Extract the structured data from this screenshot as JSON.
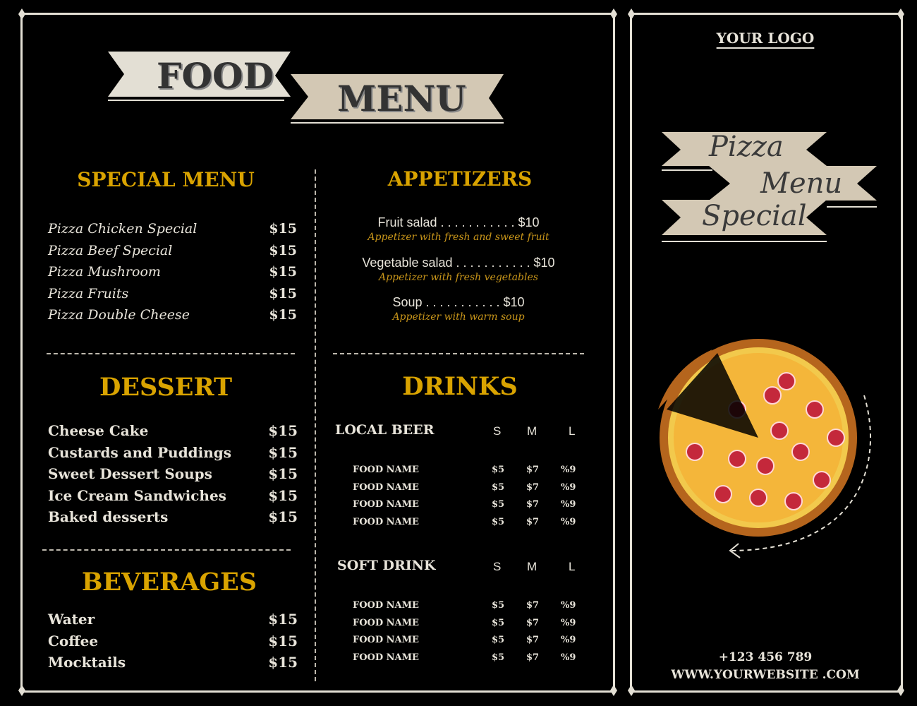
{
  "title": {
    "food": "FOOD",
    "menu": "MENU"
  },
  "special": {
    "heading": "SPECIAL MENU",
    "items": [
      {
        "name": "Pizza Chicken Special",
        "price": "$15"
      },
      {
        "name": "Pizza Beef Special",
        "price": "$15"
      },
      {
        "name": "Pizza Mushroom",
        "price": "$15"
      },
      {
        "name": "Pizza Fruits",
        "price": "$15"
      },
      {
        "name": "Pizza Double Cheese",
        "price": "$15"
      }
    ]
  },
  "dessert": {
    "heading": "DESSERT",
    "items": [
      {
        "name": "Cheese Cake",
        "price": "$15"
      },
      {
        "name": "Custards and Puddings",
        "price": "$15"
      },
      {
        "name": "Sweet Dessert Soups",
        "price": "$15"
      },
      {
        "name": "Ice Cream Sandwiches",
        "price": "$15"
      },
      {
        "name": "Baked desserts",
        "price": "$15"
      }
    ]
  },
  "beverages": {
    "heading": "BEVERAGES",
    "items": [
      {
        "name": "Water",
        "price": "$15"
      },
      {
        "name": "Coffee",
        "price": "$15"
      },
      {
        "name": "Mocktails",
        "price": "$15"
      }
    ]
  },
  "appetizers": {
    "heading": "APPETIZERS",
    "items": [
      {
        "line": "Fruit salad . . . . . . . . . . . $10",
        "desc": "Appetizer with fresh and sweet fruit"
      },
      {
        "line": "Vegetable salad . . . . . . . . . . . $10",
        "desc": "Appetizer with fresh vegetables"
      },
      {
        "line": "Soup . . . . . . . . . . . $10",
        "desc": "Appetizer with warm soup"
      }
    ]
  },
  "drinks": {
    "heading": "DRINKS",
    "sizes": [
      "S",
      "M",
      "L"
    ],
    "groups": [
      {
        "title": "LOCAL BEER",
        "rows": [
          {
            "name": "FOOD NAME",
            "s": "$5",
            "m": "$7",
            "l": "%9"
          },
          {
            "name": "FOOD NAME",
            "s": "$5",
            "m": "$7",
            "l": "%9"
          },
          {
            "name": "FOOD NAME",
            "s": "$5",
            "m": "$7",
            "l": "%9"
          },
          {
            "name": "FOOD NAME",
            "s": "$5",
            "m": "$7",
            "l": "%9"
          }
        ]
      },
      {
        "title": "SOFT DRINK",
        "rows": [
          {
            "name": "FOOD NAME",
            "s": "$5",
            "m": "$7",
            "l": "%9"
          },
          {
            "name": "FOOD NAME",
            "s": "$5",
            "m": "$7",
            "l": "%9"
          },
          {
            "name": "FOOD NAME",
            "s": "$5",
            "m": "$7",
            "l": "%9"
          },
          {
            "name": "FOOD NAME",
            "s": "$5",
            "m": "$7",
            "l": "%9"
          }
        ]
      }
    ]
  },
  "right": {
    "logo": "YOUR LOGO",
    "banner": [
      "Pizza",
      "Menu",
      "Special"
    ],
    "phone": "+123 456 789",
    "website": "WWW.YOURWEBSITE .COM"
  },
  "colors": {
    "accent": "#d9a300",
    "cream": "#e3dfd4",
    "tan": "#d3c8b4",
    "background": "#000000"
  }
}
